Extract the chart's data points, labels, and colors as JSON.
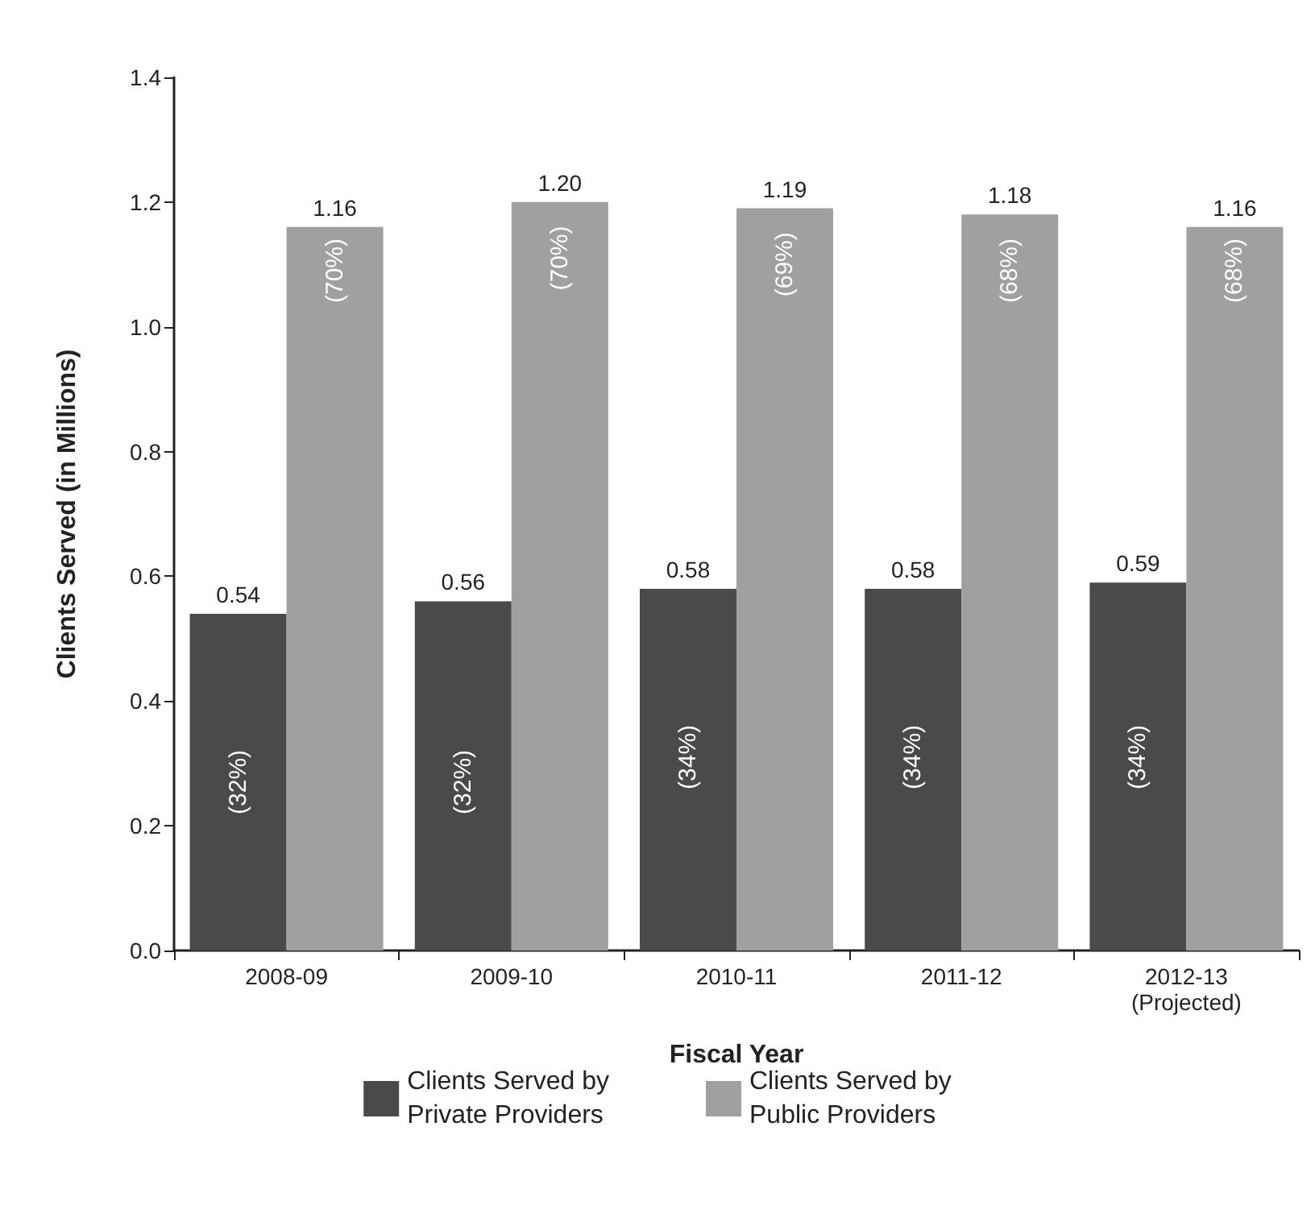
{
  "chart_data": {
    "type": "bar",
    "xlabel": "Fiscal Year",
    "ylabel": "Clients Served (in Millions)",
    "categories": [
      "2008-09",
      "2009-10",
      "2010-11",
      "2011-12",
      "2012-13\n(Projected)"
    ],
    "series": [
      {
        "name": "Clients Served by\nPrivate Providers",
        "color": "#4a4a4c",
        "values": [
          0.54,
          0.56,
          0.58,
          0.58,
          0.59
        ],
        "value_labels": [
          "0.54",
          "0.56",
          "0.58",
          "0.58",
          "0.59"
        ]
      },
      {
        "name": "Clients Served by\nPublic Providers",
        "color": "#a0a0a3",
        "values": [
          1.16,
          1.2,
          1.19,
          1.18,
          1.16
        ],
        "value_labels": [
          "1.16",
          "1.20",
          "1.19",
          "1.18",
          "1.16"
        ]
      }
    ],
    "ylim": [
      0,
      1.4
    ],
    "yticks": [
      {
        "value": 0,
        "label": "0.0"
      },
      0.2,
      0.4,
      0.6,
      0.8,
      {
        "value": 1,
        "label": "1.0"
      },
      1.2,
      1.4
    ],
    "data_labels": true,
    "grid": false,
    "legend": "bottom",
    "annotations": [
      {
        "text": "(32%)",
        "x": "2008-09",
        "y": 0.27
      },
      {
        "text": "(32%)",
        "x": "2009-10",
        "y": 0.27
      },
      {
        "text": "(34%)",
        "x": "2010-11",
        "y": 0.31
      },
      {
        "text": "(34%)",
        "x": "2011-12",
        "y": 0.31
      },
      {
        "text": "(34%)",
        "x": "2012-13\n(Projected)",
        "y": 0.31
      },
      {
        "text": "(70%)",
        "x": "2008-09",
        "y": 1.09
      },
      {
        "text": "(70%)",
        "x": "2009-10",
        "y": 1.11
      },
      {
        "text": "(69%)",
        "x": "2010-11",
        "y": 1.1
      },
      {
        "text": "(68%)",
        "x": "2011-12",
        "y": 1.09
      },
      {
        "text": "(68%)",
        "x": "2012-13\n(Projected)",
        "y": 1.09
      }
    ]
  }
}
